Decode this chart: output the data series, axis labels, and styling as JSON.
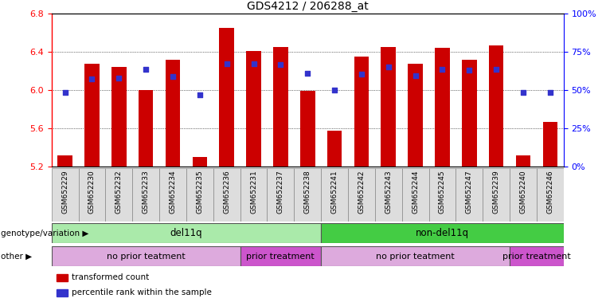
{
  "title": "GDS4212 / 206288_at",
  "samples": [
    "GSM652229",
    "GSM652230",
    "GSM652232",
    "GSM652233",
    "GSM652234",
    "GSM652235",
    "GSM652236",
    "GSM652231",
    "GSM652237",
    "GSM652238",
    "GSM652241",
    "GSM652242",
    "GSM652243",
    "GSM652244",
    "GSM652245",
    "GSM652247",
    "GSM652239",
    "GSM652240",
    "GSM652246"
  ],
  "bar_values": [
    5.32,
    6.28,
    6.24,
    6.0,
    6.32,
    5.3,
    6.65,
    6.41,
    6.45,
    5.99,
    5.58,
    6.35,
    6.45,
    6.28,
    6.44,
    6.32,
    6.47,
    5.32,
    5.67
  ],
  "dot_values": [
    5.98,
    6.12,
    6.13,
    6.22,
    6.14,
    5.95,
    6.28,
    6.28,
    6.27,
    6.18,
    6.0,
    6.17,
    6.24,
    6.15,
    6.22,
    6.21,
    6.22,
    5.98,
    5.98
  ],
  "ymin": 5.2,
  "ymax": 6.8,
  "yticks": [
    5.2,
    5.6,
    6.0,
    6.4,
    6.8
  ],
  "ytick_labels": [
    "5.2",
    "5.6",
    "6.0",
    "6.4",
    "6.8"
  ],
  "right_yticks": [
    0,
    25,
    50,
    75,
    100
  ],
  "right_ytick_labels": [
    "0%",
    "25%",
    "50%",
    "75%",
    "100%"
  ],
  "bar_color": "#cc0000",
  "dot_color": "#3333cc",
  "bar_bottom": 5.2,
  "genotype_groups": [
    {
      "label": "del11q",
      "start": 0,
      "end": 10,
      "color": "#aaeaaa"
    },
    {
      "label": "non-del11q",
      "start": 10,
      "end": 19,
      "color": "#44cc44"
    }
  ],
  "treatment_groups": [
    {
      "label": "no prior teatment",
      "start": 0,
      "end": 7,
      "color": "#ddaadd"
    },
    {
      "label": "prior treatment",
      "start": 7,
      "end": 10,
      "color": "#cc55cc"
    },
    {
      "label": "no prior teatment",
      "start": 10,
      "end": 17,
      "color": "#ddaadd"
    },
    {
      "label": "prior treatment",
      "start": 17,
      "end": 19,
      "color": "#cc55cc"
    }
  ],
  "legend_items": [
    {
      "label": "transformed count",
      "color": "#cc0000"
    },
    {
      "label": "percentile rank within the sample",
      "color": "#3333cc"
    }
  ],
  "genotype_label": "genotype/variation",
  "other_label": "other",
  "title_fontsize": 10,
  "bg_color": "#dddddd"
}
